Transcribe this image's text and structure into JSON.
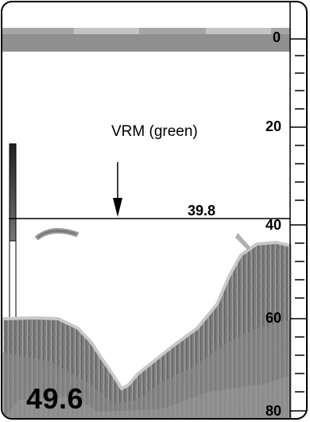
{
  "scale": {
    "labels": [
      {
        "id": "d0",
        "text": "0"
      },
      {
        "id": "d20",
        "text": "20"
      },
      {
        "id": "d40",
        "text": "40"
      },
      {
        "id": "d60",
        "text": "60"
      },
      {
        "id": "d80",
        "text": "80"
      }
    ]
  },
  "vrm": {
    "label": "VRM (green)",
    "value": "39.8"
  },
  "depth_readout": "49.6",
  "colors": {
    "frame": "#000000",
    "surface_band": "#8c8c8c",
    "surface_band_light": "#b4b4b4",
    "seabed": "#7a7a7a",
    "seabed_edge": "#bdbdbd",
    "fish": "#808080",
    "color_bar_top": "#2a2a2a",
    "color_bar_bottom": "#d8d8d8"
  }
}
